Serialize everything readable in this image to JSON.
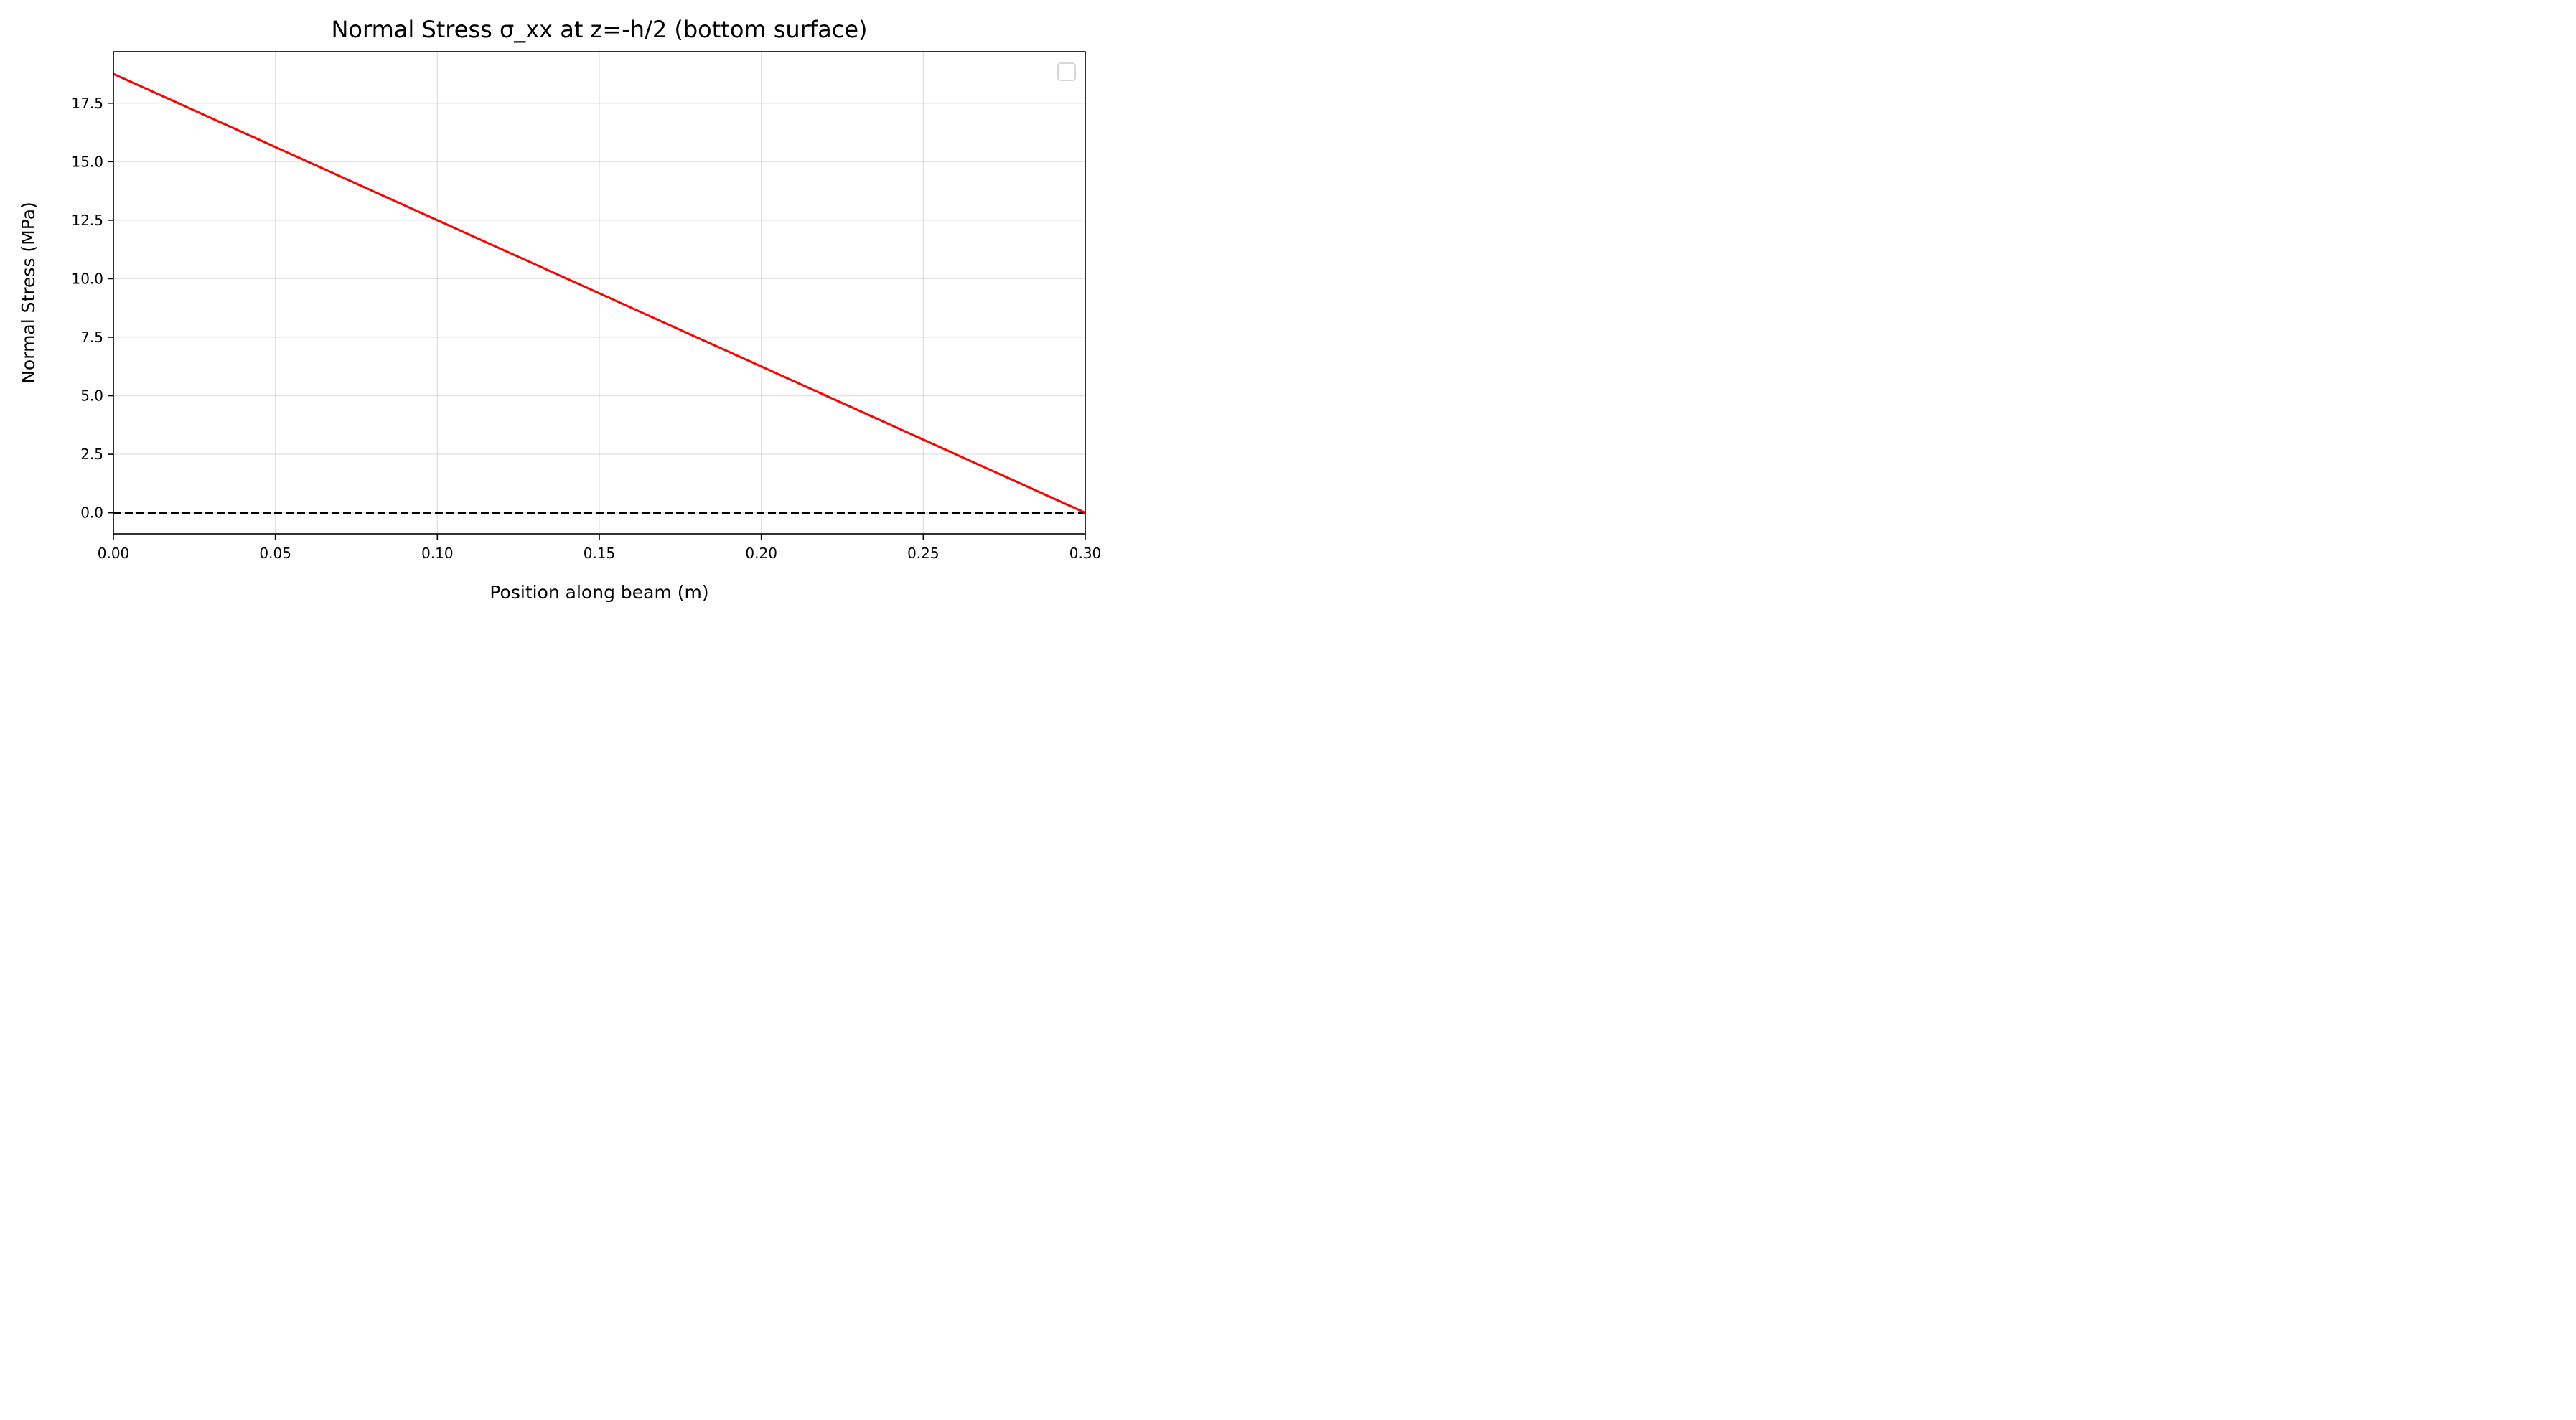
{
  "chart_data": {
    "type": "line",
    "title": "Normal Stress σ_xx at z=-h/2 (bottom surface)",
    "xlabel": "Position along beam (m)",
    "ylabel": "Normal Stress (MPa)",
    "xlim": [
      0.0,
      0.3
    ],
    "ylim": [
      -0.9,
      19.7
    ],
    "x_ticks": [
      "0.00",
      "0.05",
      "0.10",
      "0.15",
      "0.20",
      "0.25",
      "0.30"
    ],
    "x_tick_values": [
      0.0,
      0.05,
      0.1,
      0.15,
      0.2,
      0.25,
      0.3
    ],
    "y_ticks": [
      "0.0",
      "2.5",
      "5.0",
      "7.5",
      "10.0",
      "12.5",
      "15.0",
      "17.5"
    ],
    "y_tick_values": [
      0.0,
      2.5,
      5.0,
      7.5,
      10.0,
      12.5,
      15.0,
      17.5
    ],
    "grid": true,
    "legend": "top-right (empty)",
    "series": [
      {
        "x": [
          0.0,
          0.3
        ],
        "y": [
          18.75,
          0.0
        ],
        "color": "#ff0000",
        "style": "solid"
      },
      {
        "x": [
          0.0,
          0.3
        ],
        "y": [
          0.0,
          0.0
        ],
        "color": "#000000",
        "style": "dashed"
      }
    ]
  }
}
